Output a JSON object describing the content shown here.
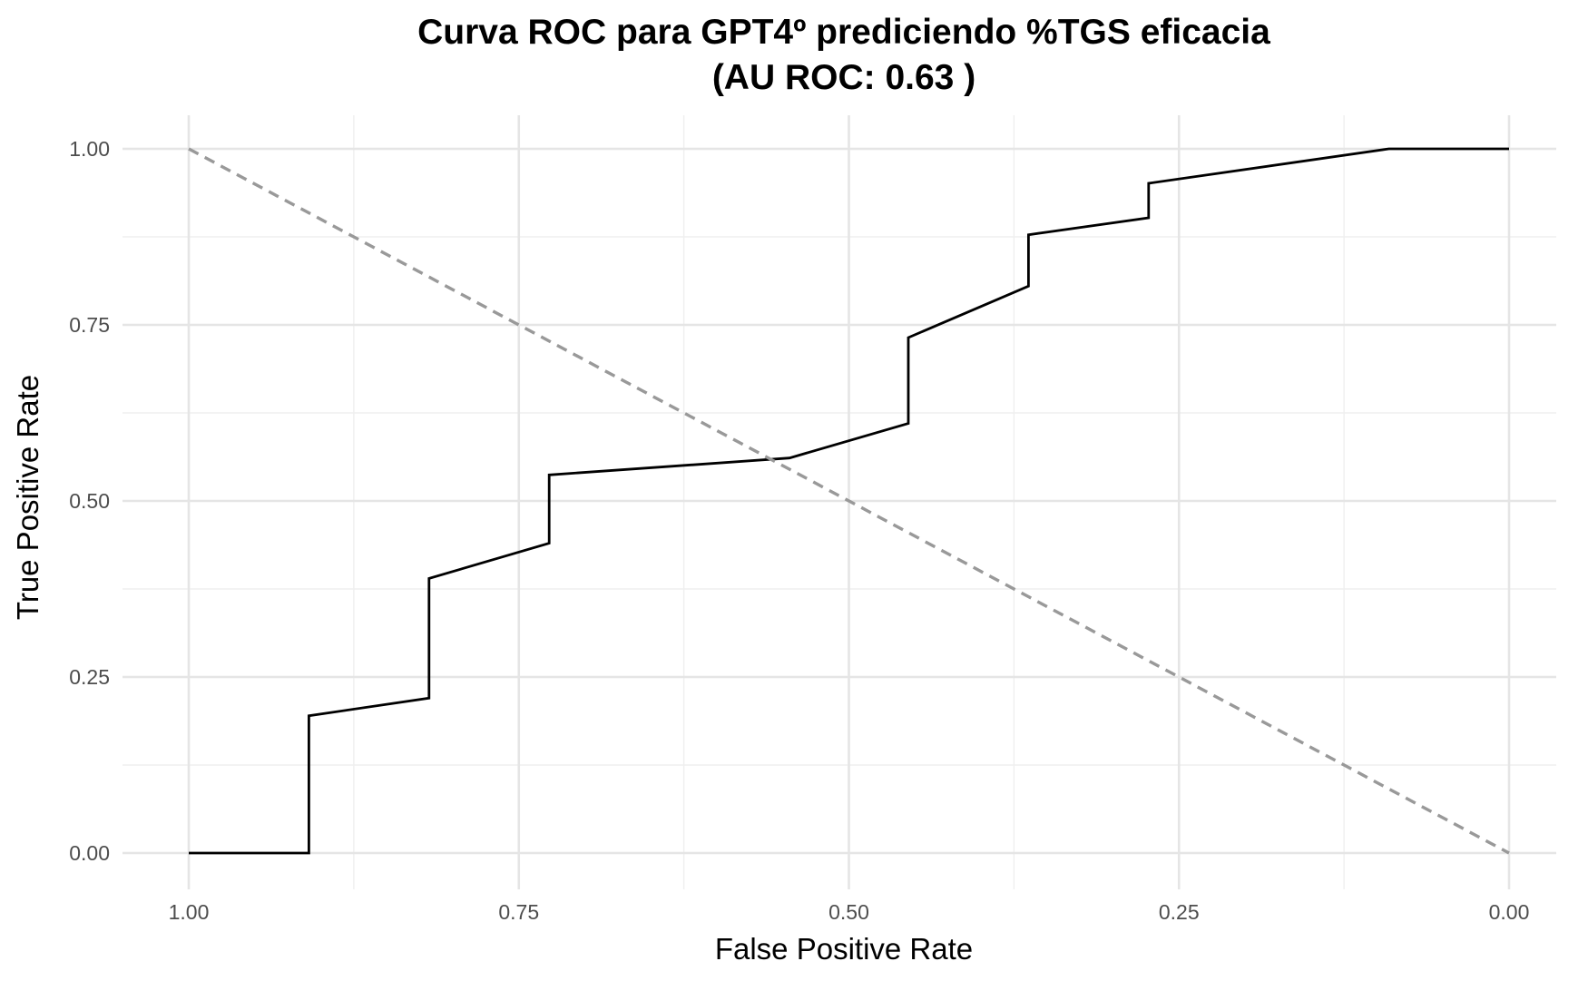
{
  "chart_data": {
    "type": "line",
    "title": "Curva ROC para GPT4º prediciendo %TGS eficacia",
    "subtitle": "(AU ROC: 0.63 )",
    "xlabel": "False Positive Rate",
    "ylabel": "True Positive Rate",
    "xlim": [
      1.0,
      0.0
    ],
    "ylim": [
      0.0,
      1.0
    ],
    "x_reversed": true,
    "grid": true,
    "x_ticks": [
      1.0,
      0.75,
      0.5,
      0.25,
      0.0
    ],
    "y_ticks": [
      0.0,
      0.25,
      0.5,
      0.75,
      1.0
    ],
    "x_tick_labels": [
      "1.00",
      "0.75",
      "0.50",
      "0.25",
      "0.00"
    ],
    "y_tick_labels": [
      "0.00",
      "0.25",
      "0.50",
      "0.75",
      "1.00"
    ],
    "series": [
      {
        "style": "solid",
        "color": "#000000",
        "x": [
          1.0,
          0.909,
          0.909,
          0.818,
          0.818,
          0.727,
          0.727,
          0.545,
          0.455,
          0.455,
          0.364,
          0.364,
          0.273,
          0.273,
          0.091,
          0.0
        ],
        "y": [
          0.0,
          0.0,
          0.195,
          0.22,
          0.39,
          0.44,
          0.537,
          0.561,
          0.61,
          0.732,
          0.805,
          0.878,
          0.902,
          0.951,
          1.0,
          1.0
        ]
      },
      {
        "style": "dashed",
        "color": "#999999",
        "x": [
          1.0,
          0.0
        ],
        "y": [
          1.0,
          0.0
        ]
      }
    ]
  }
}
